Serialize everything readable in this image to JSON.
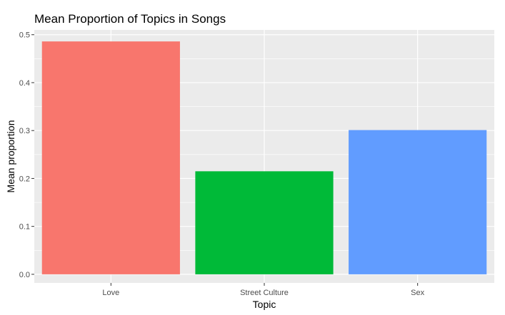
{
  "chart_data": {
    "type": "bar",
    "title": "Mean Proportion of Topics in Songs",
    "xlabel": "Topic",
    "ylabel": "Mean proportion",
    "categories": [
      "Love",
      "Street Culture",
      "Sex"
    ],
    "values": [
      0.486,
      0.215,
      0.301
    ],
    "ylim": [
      -0.018,
      0.51
    ],
    "yticks": [
      "0.0",
      "0.1",
      "0.2",
      "0.3",
      "0.4",
      "0.5"
    ],
    "grid": true,
    "legend": "none",
    "colors": [
      "#F8766D",
      "#00BA38",
      "#619CFF"
    ],
    "panel_background": "#EBEBEB",
    "grid_color": "#FFFFFF"
  }
}
